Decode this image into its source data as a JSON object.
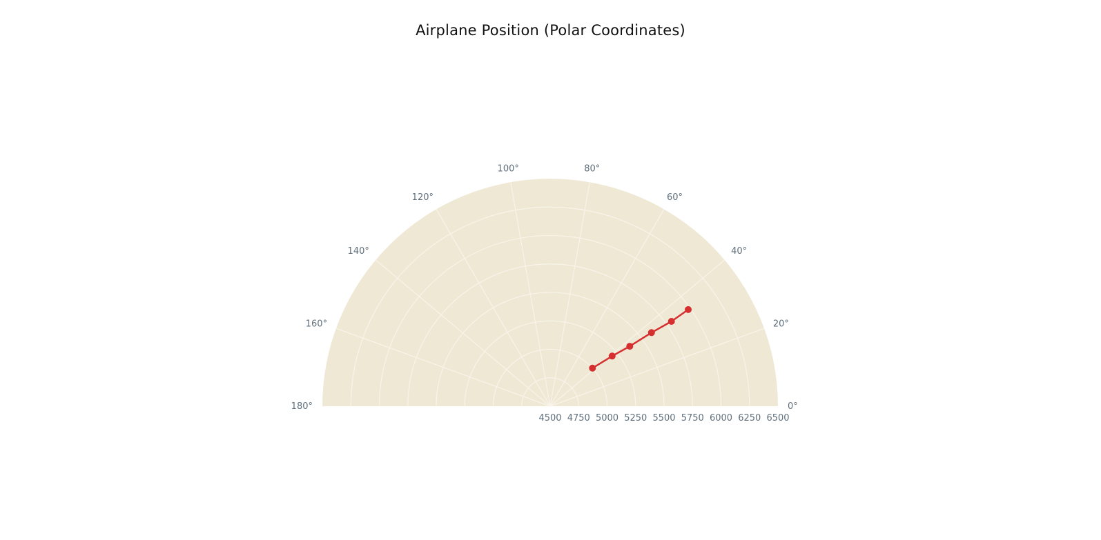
{
  "chart_data": {
    "type": "line",
    "subtype": "polar",
    "title": "Airplane Position (Polar Coordinates)",
    "sector": [
      0,
      180
    ],
    "angular_axis": {
      "unit": "degrees",
      "ticks": [
        0,
        20,
        40,
        60,
        80,
        100,
        120,
        140,
        160,
        180
      ],
      "tick_labels": [
        "0°",
        "20°",
        "40°",
        "60°",
        "80°",
        "100°",
        "120°",
        "140°",
        "160°",
        "180°"
      ]
    },
    "radial_axis": {
      "range": [
        4500,
        6500
      ],
      "ticks": [
        4500,
        4750,
        5000,
        5250,
        5500,
        5750,
        6000,
        6250,
        6500
      ],
      "tick_labels": [
        "4500",
        "4750",
        "5000",
        "5250",
        "5500",
        "5750",
        "6000",
        "6250",
        "6500"
      ]
    },
    "grid": true,
    "legend": "none",
    "series": [
      {
        "mode": "lines+markers",
        "theta": [
          42,
          39,
          37,
          36,
          35,
          35
        ],
        "r": [
          5000,
          5200,
          5375,
          5600,
          5800,
          5980
        ],
        "color": "#d62f2f"
      }
    ],
    "colors": {
      "plot_background": "#efe8d5",
      "grid": "#f8f4ea",
      "tick_text": "#5f6f7c",
      "title_text": "#111111"
    }
  }
}
